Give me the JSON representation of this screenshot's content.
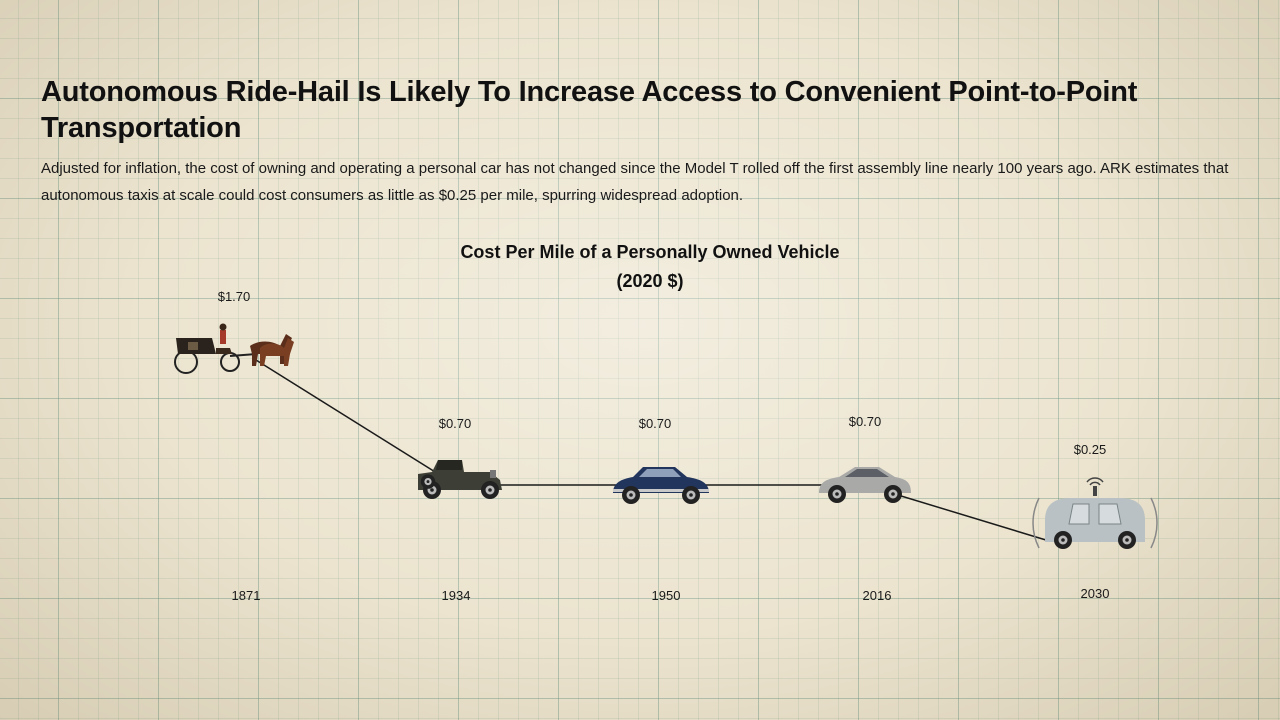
{
  "header": {
    "title": "Autonomous Ride-Hail Is Likely To Increase Access to Convenient Point-to-Point Transportation",
    "subtitle": "Adjusted for inflation, the cost of owning and operating a personal car has not changed since the Model T rolled off the first assembly line nearly 100 years ago. ARK estimates that autonomous taxis at scale could cost consumers as little as $0.25 per mile, spurring widespread adoption."
  },
  "chart_data": {
    "type": "line",
    "title": "Cost Per Mile of a Personally Owned Vehicle",
    "subtitle": "(2020 $)",
    "categories": [
      "1871",
      "1934",
      "1950",
      "2016",
      "2030"
    ],
    "values": [
      1.7,
      0.7,
      0.7,
      0.7,
      0.25
    ],
    "value_labels": [
      "$1.70",
      "$0.70",
      "$0.70",
      "$0.70",
      "$0.25"
    ],
    "markers": [
      "horse-carriage-icon",
      "vintage-car-icon",
      "classic-sedan-icon",
      "modern-sedan-icon",
      "autonomous-taxi-icon"
    ],
    "xlabel": "",
    "ylabel": "",
    "ylim": [
      0,
      2
    ],
    "grid": true,
    "legend": "none",
    "line_color": "#1a1a1a"
  }
}
